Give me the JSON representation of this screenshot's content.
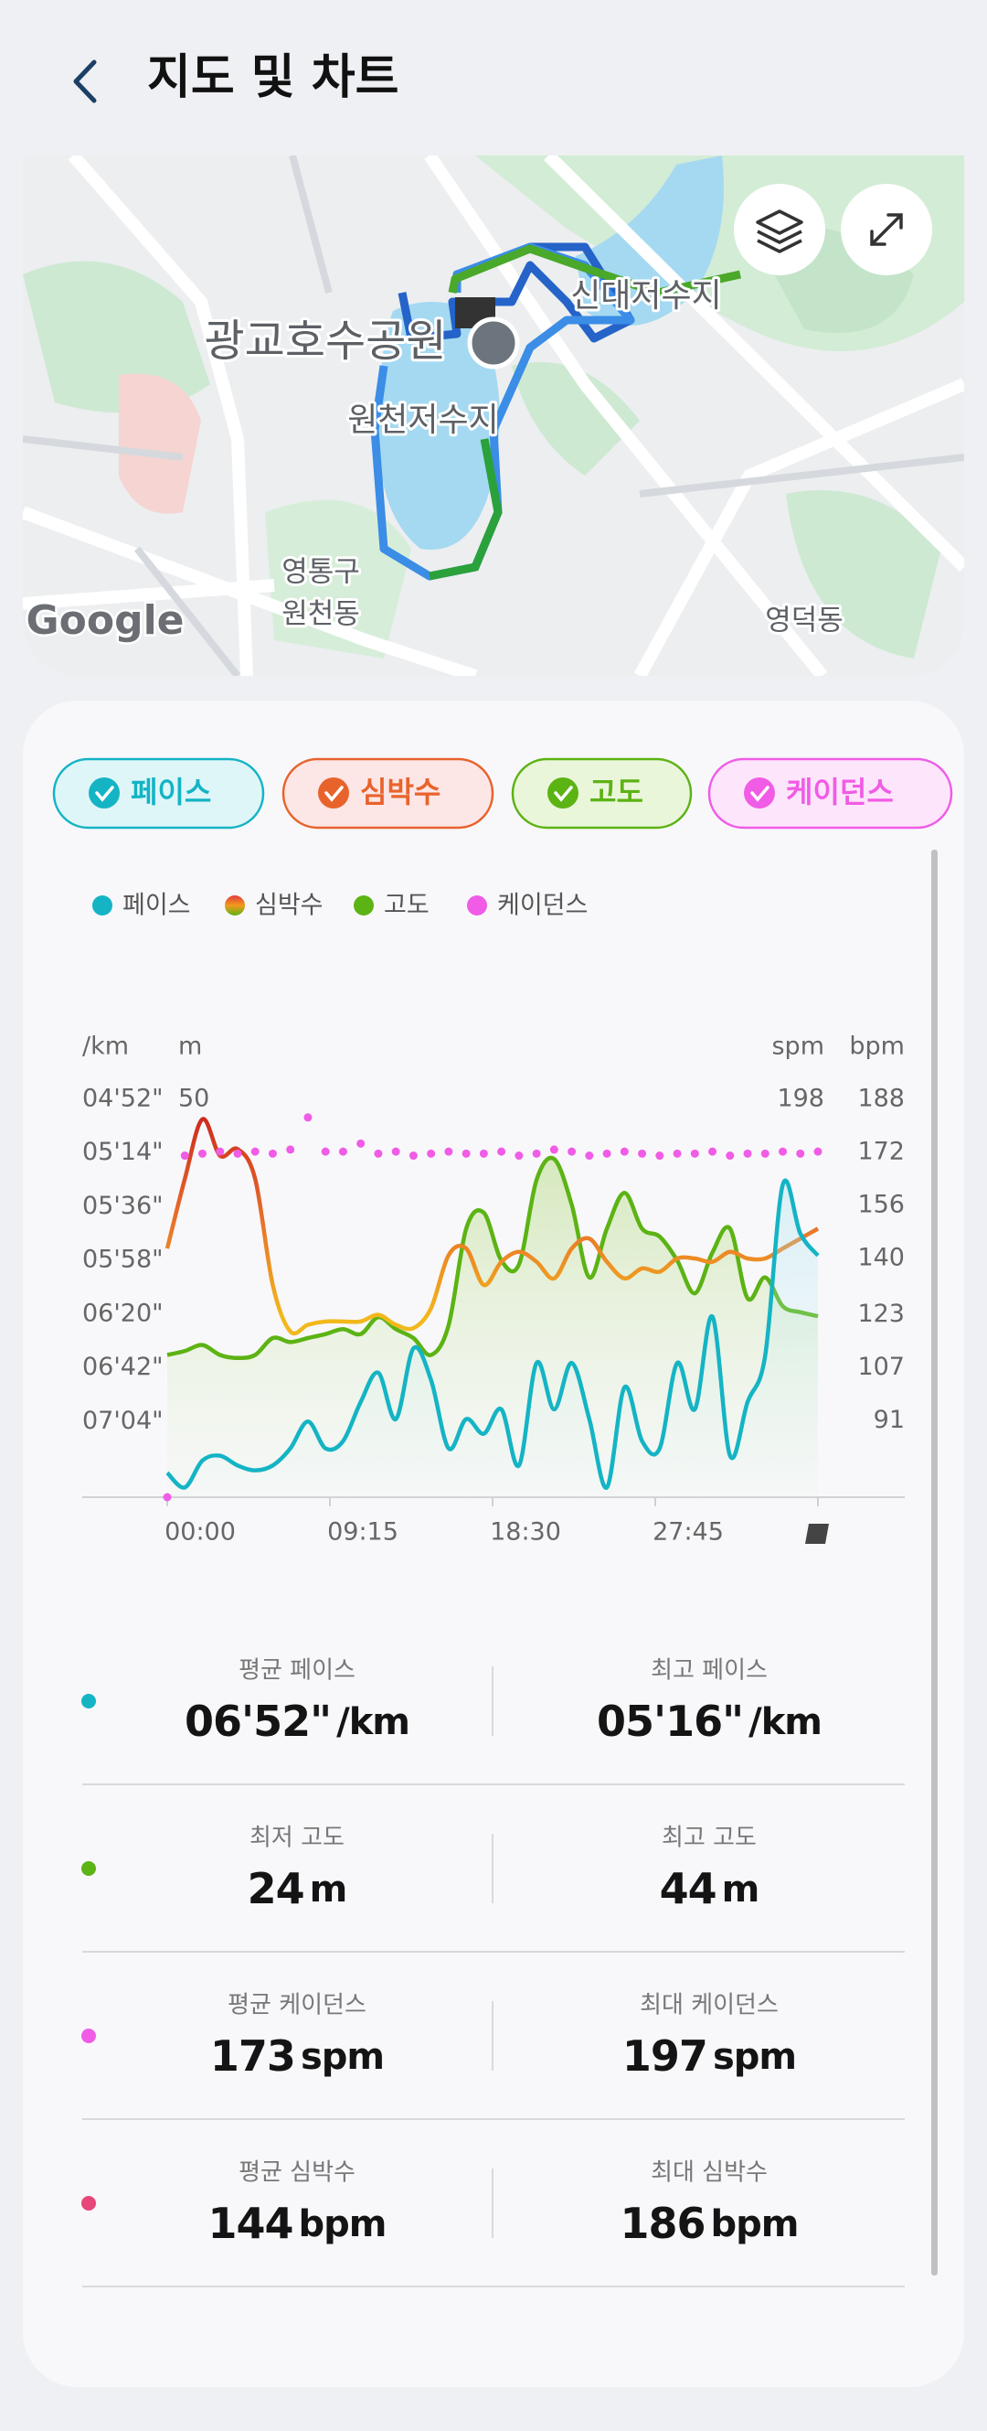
{
  "header": {
    "title": "지도 및 차트"
  },
  "map": {
    "labels": [
      "광교호수공원",
      "신대저수지",
      "원천저수지",
      "영통구",
      "원천동",
      "영덕동"
    ],
    "attribution": "Google"
  },
  "chart_data": {
    "type": "line",
    "x": [
      0,
      1,
      2,
      3,
      4,
      5,
      6,
      7,
      8,
      9,
      10,
      11,
      12,
      13,
      14,
      15,
      16,
      17,
      18,
      19,
      20,
      21,
      22,
      23,
      24,
      25,
      26,
      27,
      28,
      29,
      30,
      31,
      32,
      33,
      34,
      35,
      36,
      37
    ],
    "xlim": [
      0,
      37
    ],
    "xticks": [
      {
        "value": 0,
        "label": "00:00"
      },
      {
        "value": 9.25,
        "label": "09:15"
      },
      {
        "value": 18.5,
        "label": "18:30"
      },
      {
        "value": 27.75,
        "label": "27:45"
      }
    ],
    "axes": [
      {
        "title": "/km",
        "side": "left",
        "lim": [
          455,
          292
        ],
        "ticks": [
          {
            "value": 292,
            "label": "04'52\""
          },
          {
            "value": 314,
            "label": "05'14\""
          },
          {
            "value": 336,
            "label": "05'36\""
          },
          {
            "value": 358,
            "label": "05'58\""
          },
          {
            "value": 380,
            "label": "06'20\""
          },
          {
            "value": 402,
            "label": "06'42\""
          },
          {
            "value": 424,
            "label": "07'04\""
          }
        ]
      },
      {
        "title": "m",
        "side": "left",
        "lim": [
          10,
          50
        ],
        "ticks": [
          50
        ]
      },
      {
        "title": "spm",
        "side": "right",
        "lim": [
          0,
          198
        ],
        "ticks": [
          198
        ]
      },
      {
        "title": "bpm",
        "side": "right",
        "lim": [
          68,
          188
        ],
        "ticks": [
          188,
          172,
          156,
          140,
          123,
          107,
          91
        ]
      }
    ],
    "series": [
      {
        "name": "페이스",
        "color": "#14b4c4",
        "style": "line",
        "axis": 0,
        "values": [
          445,
          451,
          440,
          438,
          442,
          444,
          442,
          435,
          424,
          435,
          432,
          416,
          404,
          423,
          394,
          407,
          435,
          423,
          429,
          419,
          442,
          400,
          419,
          400,
          423,
          451,
          410,
          432,
          435,
          400,
          419,
          381,
          438,
          416,
          397,
          327,
          347,
          356
        ]
      },
      {
        "name": "심박수",
        "color": "#e8632c",
        "style": "line",
        "axis": 3,
        "values": [
          143,
          164,
          182,
          171,
          173,
          164,
          132,
          118,
          120,
          121,
          121,
          121,
          123,
          120,
          119,
          125,
          141,
          143,
          132,
          139,
          142,
          139,
          134,
          143,
          146,
          139,
          134,
          137,
          136,
          140,
          140,
          139,
          142,
          140,
          140,
          143,
          146,
          149
        ]
      },
      {
        "name": "고도",
        "color": "#5cb314",
        "style": "area",
        "axis": 1,
        "values": [
          24.3,
          24.7,
          25.3,
          24.3,
          24,
          24.3,
          26,
          25.6,
          26,
          26.4,
          26.9,
          26.4,
          28.1,
          26.9,
          26,
          24.3,
          27.3,
          37,
          38.6,
          33.8,
          33.4,
          41.9,
          44,
          39.4,
          32.1,
          37,
          40.6,
          37,
          36.2,
          33.8,
          30.5,
          34.6,
          37,
          30,
          32.1,
          29.2,
          28.6,
          28.2
        ]
      },
      {
        "name": "케이던스",
        "color": "#f05ce6",
        "style": "dots",
        "axis": 2,
        "values": [
          0,
          170,
          171,
          172,
          171,
          172,
          171,
          173,
          189,
          172,
          172,
          176,
          171,
          172,
          170,
          171,
          172,
          171,
          171,
          172,
          170,
          171,
          173,
          172,
          170,
          171,
          172,
          171,
          170,
          171,
          171,
          172,
          170,
          171,
          171,
          172,
          171,
          172
        ]
      }
    ]
  },
  "stats": [
    {
      "color": "#14b4c4",
      "left": {
        "label": "평균 페이스",
        "value": "06'52\"",
        "unit": "/km"
      },
      "right": {
        "label": "최고 페이스",
        "value": "05'16\"",
        "unit": "/km"
      }
    },
    {
      "color": "#5cb314",
      "left": {
        "label": "최저 고도",
        "value": 24,
        "unit": "m"
      },
      "right": {
        "label": "최고 고도",
        "value": 44,
        "unit": "m"
      }
    },
    {
      "color": "#f05ce6",
      "left": {
        "label": "평균 케이던스",
        "value": 173,
        "unit": "spm"
      },
      "right": {
        "label": "최대 케이던스",
        "value": 197,
        "unit": "spm"
      }
    },
    {
      "color": "#e8457a",
      "left": {
        "label": "평균 심박수",
        "value": 144,
        "unit": "bpm"
      },
      "right": {
        "label": "최대 심박수",
        "value": 186,
        "unit": "bpm"
      }
    }
  ]
}
